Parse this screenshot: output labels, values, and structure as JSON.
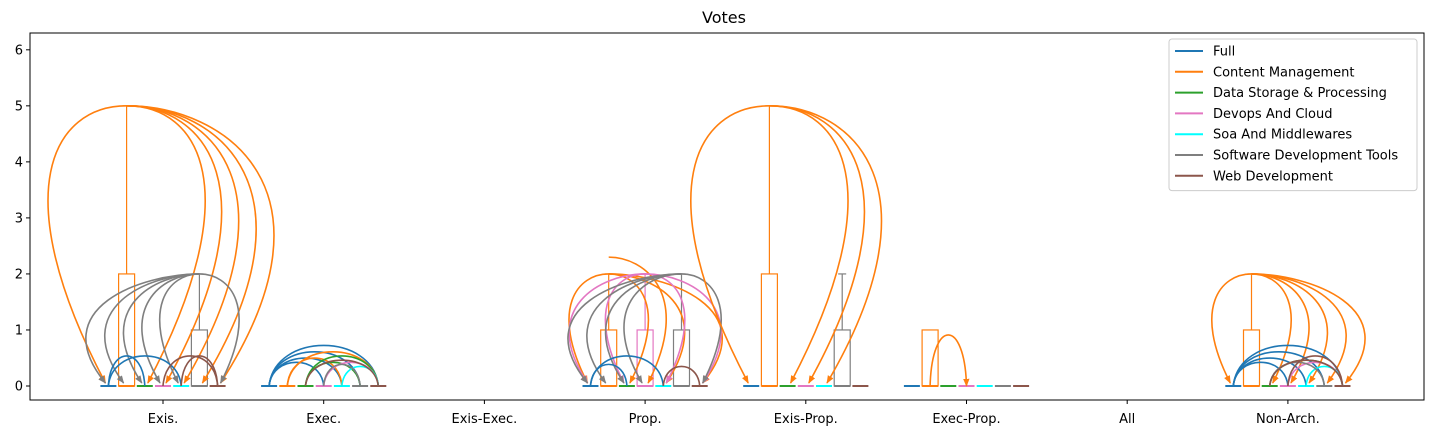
{
  "chart_data": {
    "type": "box-arc",
    "title": "Votes",
    "xlabel": "",
    "ylabel": "",
    "ylim": [
      -0.25,
      6.3
    ],
    "yticks": [
      0,
      1,
      2,
      3,
      4,
      5,
      6
    ],
    "categories": [
      "Exis.",
      "Exec.",
      "Exis-Exec.",
      "Prop.",
      "Exis-Prop.",
      "Exec-Prop.",
      "All",
      "Non-Arch."
    ],
    "series": [
      {
        "name": "Full",
        "color": "#1f77b4"
      },
      {
        "name": "Content Management",
        "color": "#ff7f0e"
      },
      {
        "name": "Data Storage & Processing",
        "color": "#2ca02c"
      },
      {
        "name": "Devops And Cloud",
        "color": "#e377c2"
      },
      {
        "name": "Soa And Middlewares",
        "color": "#00ffff"
      },
      {
        "name": "Software Development Tools",
        "color": "#7f7f7f"
      },
      {
        "name": "Web Development",
        "color": "#8c564b"
      }
    ],
    "boxes": [
      {
        "category": 0,
        "series": 1,
        "q1": 0,
        "q3": 2,
        "whisker_max": 5
      },
      {
        "category": 0,
        "series": 5,
        "q1": 0,
        "q3": 1,
        "whisker_max": 2
      },
      {
        "category": 3,
        "series": 1,
        "q1": 0,
        "q3": 1,
        "whisker_max": 2
      },
      {
        "category": 3,
        "series": 3,
        "q1": 0,
        "q3": 1,
        "whisker_max": 2
      },
      {
        "category": 3,
        "series": 5,
        "q1": 0,
        "q3": 1,
        "whisker_max": 2
      },
      {
        "category": 4,
        "series": 1,
        "q1": 0,
        "q3": 2,
        "whisker_max": 5
      },
      {
        "category": 4,
        "series": 5,
        "q1": 0,
        "q3": 1,
        "whisker_max": 2
      },
      {
        "category": 5,
        "series": 1,
        "q1": 0,
        "q3": 1,
        "whisker_max": 1
      },
      {
        "category": 7,
        "series": 1,
        "q1": 0,
        "q3": 1,
        "whisker_max": 2
      }
    ],
    "arcs": [
      {
        "category": 0,
        "from": 1,
        "to": 0,
        "height": 5,
        "color": "#ff7f0e"
      },
      {
        "category": 0,
        "from": 1,
        "to": 5,
        "height": 5,
        "color": "#ff7f0e"
      },
      {
        "category": 0,
        "from": 1,
        "to": 2,
        "height": 5,
        "color": "#ff7f0e"
      },
      {
        "category": 0,
        "from": 1,
        "to": 3,
        "height": 5,
        "color": "#ff7f0e"
      },
      {
        "category": 0,
        "from": 1,
        "to": 4,
        "height": 5,
        "color": "#ff7f0e"
      },
      {
        "category": 0,
        "from": 1,
        "to": 6,
        "height": 5,
        "color": "#ff7f0e"
      },
      {
        "category": 0,
        "from": 5,
        "to": 0,
        "height": 2,
        "color": "#7f7f7f"
      },
      {
        "category": 0,
        "from": 5,
        "to": 1,
        "height": 2,
        "color": "#7f7f7f"
      },
      {
        "category": 0,
        "from": 5,
        "to": 2,
        "height": 2,
        "color": "#7f7f7f"
      },
      {
        "category": 0,
        "from": 5,
        "to": 3,
        "height": 2,
        "color": "#7f7f7f"
      },
      {
        "category": 0,
        "from": 5,
        "to": 4,
        "height": 2,
        "color": "#7f7f7f"
      },
      {
        "category": 0,
        "from": 5,
        "to": 6,
        "height": 2,
        "color": "#7f7f7f"
      },
      {
        "category": 0,
        "from": 0,
        "to": 2,
        "height": 0.5,
        "color": "#1f77b4"
      },
      {
        "category": 0,
        "from": 0,
        "to": 4,
        "height": 0.5,
        "color": "#1f77b4"
      },
      {
        "category": 0,
        "from": 6,
        "to": 3,
        "height": 0.5,
        "color": "#8c564b"
      },
      {
        "category": 0,
        "from": 6,
        "to": 4,
        "height": 0.5,
        "color": "#8c564b"
      },
      {
        "category": 1,
        "from": 0,
        "to": 6,
        "height": 0.75,
        "color": "#1f77b4"
      },
      {
        "category": 1,
        "from": 0,
        "to": 5,
        "height": 0.6,
        "color": "#1f77b4"
      },
      {
        "category": 1,
        "from": 0,
        "to": 4,
        "height": 0.45,
        "color": "#1f77b4"
      },
      {
        "category": 1,
        "from": 0,
        "to": 3,
        "height": 0.35,
        "color": "#1f77b4"
      },
      {
        "category": 1,
        "from": 1,
        "to": 6,
        "height": 0.6,
        "color": "#ff7f0e"
      },
      {
        "category": 1,
        "from": 1,
        "to": 4,
        "height": 0.45,
        "color": "#ff7f0e"
      },
      {
        "category": 1,
        "from": 2,
        "to": 6,
        "height": 0.5,
        "color": "#2ca02c"
      },
      {
        "category": 1,
        "from": 2,
        "to": 5,
        "height": 0.35,
        "color": "#2ca02c"
      },
      {
        "category": 1,
        "from": 3,
        "to": 6,
        "height": 0.35,
        "color": "#e377c2"
      },
      {
        "category": 1,
        "from": 4,
        "to": 6,
        "height": 0.25,
        "color": "#00ffff"
      },
      {
        "category": 1,
        "from": 5,
        "to": 3,
        "height": 0.3,
        "color": "#7f7f7f"
      },
      {
        "category": 1,
        "from": 6,
        "to": 2,
        "height": 0.4,
        "color": "#8c564b"
      },
      {
        "category": 3,
        "from": 1,
        "to": 0,
        "height": 2,
        "color": "#ff7f0e"
      },
      {
        "category": 3,
        "from": 1,
        "to": 2,
        "height": 2,
        "color": "#ff7f0e"
      },
      {
        "category": 3,
        "from": 1,
        "to": 3,
        "height": 2.3,
        "color": "#ff7f0e"
      },
      {
        "category": 3,
        "from": 1,
        "to": 4,
        "height": 2,
        "color": "#ff7f0e"
      },
      {
        "category": 3,
        "from": 1,
        "to": 6,
        "height": 2,
        "color": "#ff7f0e"
      },
      {
        "category": 3,
        "from": 3,
        "to": 0,
        "height": 2,
        "color": "#e377c2"
      },
      {
        "category": 3,
        "from": 3,
        "to": 2,
        "height": 2,
        "color": "#e377c2"
      },
      {
        "category": 3,
        "from": 3,
        "to": 4,
        "height": 2,
        "color": "#e377c2"
      },
      {
        "category": 3,
        "from": 3,
        "to": 6,
        "height": 2,
        "color": "#e377c2"
      },
      {
        "category": 3,
        "from": 5,
        "to": 0,
        "height": 2,
        "color": "#7f7f7f"
      },
      {
        "category": 3,
        "from": 5,
        "to": 1,
        "height": 2,
        "color": "#7f7f7f"
      },
      {
        "category": 3,
        "from": 5,
        "to": 2,
        "height": 2,
        "color": "#7f7f7f"
      },
      {
        "category": 3,
        "from": 5,
        "to": 3,
        "height": 2,
        "color": "#7f7f7f"
      },
      {
        "category": 3,
        "from": 5,
        "to": 6,
        "height": 2,
        "color": "#7f7f7f"
      },
      {
        "category": 3,
        "from": 0,
        "to": 4,
        "height": 0.5,
        "color": "#1f77b4"
      },
      {
        "category": 3,
        "from": 0,
        "to": 2,
        "height": 0.3,
        "color": "#1f77b4"
      },
      {
        "category": 3,
        "from": 6,
        "to": 4,
        "height": 0.25,
        "color": "#8c564b"
      },
      {
        "category": 4,
        "from": 1,
        "to": 0,
        "height": 5,
        "color": "#ff7f0e"
      },
      {
        "category": 4,
        "from": 1,
        "to": 2,
        "height": 5,
        "color": "#ff7f0e"
      },
      {
        "category": 4,
        "from": 1,
        "to": 3,
        "height": 5,
        "color": "#ff7f0e"
      },
      {
        "category": 4,
        "from": 1,
        "to": 4,
        "height": 5,
        "color": "#ff7f0e"
      },
      {
        "category": 5,
        "from": 1,
        "to": 3,
        "height": 1,
        "color": "#ff7f0e"
      },
      {
        "category": 7,
        "from": 1,
        "to": 0,
        "height": 2,
        "color": "#ff7f0e"
      },
      {
        "category": 7,
        "from": 1,
        "to": 2,
        "height": 2,
        "color": "#ff7f0e"
      },
      {
        "category": 7,
        "from": 1,
        "to": 3,
        "height": 2,
        "color": "#ff7f0e"
      },
      {
        "category": 7,
        "from": 1,
        "to": 4,
        "height": 2,
        "color": "#ff7f0e"
      },
      {
        "category": 7,
        "from": 1,
        "to": 5,
        "height": 2,
        "color": "#ff7f0e"
      },
      {
        "category": 7,
        "from": 1,
        "to": 6,
        "height": 2,
        "color": "#ff7f0e"
      },
      {
        "category": 7,
        "from": 0,
        "to": 6,
        "height": 0.75,
        "color": "#1f77b4"
      },
      {
        "category": 7,
        "from": 0,
        "to": 5,
        "height": 0.6,
        "color": "#1f77b4"
      },
      {
        "category": 7,
        "from": 0,
        "to": 4,
        "height": 0.45,
        "color": "#1f77b4"
      },
      {
        "category": 7,
        "from": 0,
        "to": 3,
        "height": 0.35,
        "color": "#1f77b4"
      },
      {
        "category": 7,
        "from": 2,
        "to": 6,
        "height": 0.4,
        "color": "#2ca02c"
      },
      {
        "category": 7,
        "from": 3,
        "to": 6,
        "height": 0.35,
        "color": "#e377c2"
      },
      {
        "category": 7,
        "from": 4,
        "to": 6,
        "height": 0.25,
        "color": "#00ffff"
      },
      {
        "category": 7,
        "from": 5,
        "to": 2,
        "height": 0.35,
        "color": "#7f7f7f"
      },
      {
        "category": 7,
        "from": 6,
        "to": 3,
        "height": 0.5,
        "color": "#8c564b"
      },
      {
        "category": 7,
        "from": 6,
        "to": 2,
        "height": 0.4,
        "color": "#8c564b"
      }
    ],
    "legend": {
      "position": "top-right"
    },
    "grid": false
  }
}
